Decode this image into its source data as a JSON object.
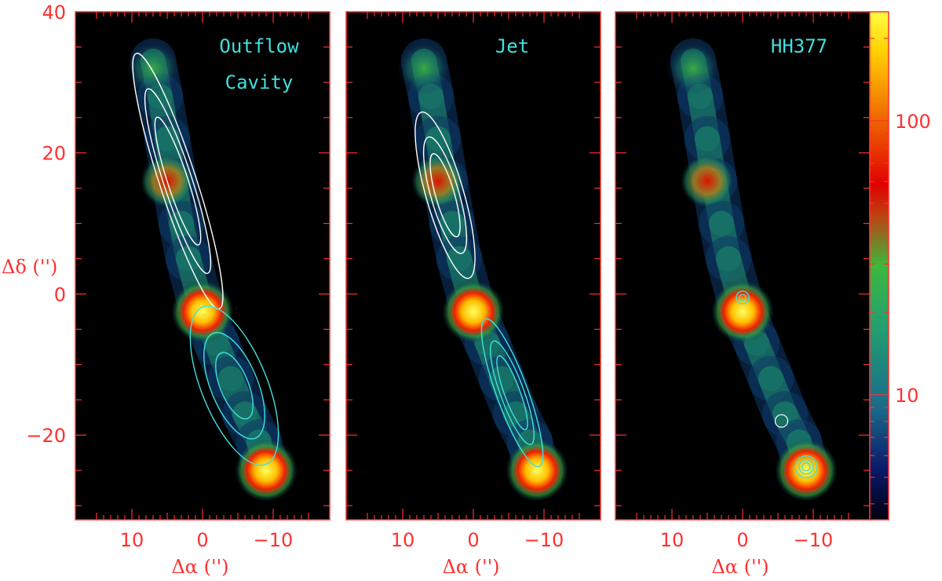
{
  "chart_data": {
    "type": "heatmap",
    "title": "",
    "panels": [
      {
        "labels": [
          "Outflow",
          "Cavity"
        ]
      },
      {
        "labels": [
          "Jet"
        ]
      },
      {
        "labels": [
          "HH377"
        ]
      }
    ],
    "xlabel": "Δα ('')",
    "ylabel": "Δδ ('')",
    "xlim": [
      18,
      -18
    ],
    "ylim": [
      -32,
      40
    ],
    "xticks": [
      10,
      0,
      -10
    ],
    "xtick_labels": [
      "10",
      "0",
      "−10"
    ],
    "yticks": [
      40,
      20,
      0,
      -20
    ],
    "ytick_labels": [
      "40",
      "20",
      "0",
      "−20"
    ],
    "colorbar": {
      "scale": "log",
      "min": 3.5,
      "max": 250,
      "ticks": [
        100,
        10
      ],
      "tick_labels": [
        "100",
        "10"
      ]
    },
    "emission_knots": [
      {
        "x": 0,
        "y": -2.5,
        "level": 150
      },
      {
        "x": -9,
        "y": -25,
        "level": 200
      },
      {
        "x": 5,
        "y": 16,
        "level": 45
      },
      {
        "x": 7,
        "y": 32,
        "level": 30
      }
    ],
    "contour_colors": [
      "#ffffff",
      "#40e0e0"
    ]
  }
}
